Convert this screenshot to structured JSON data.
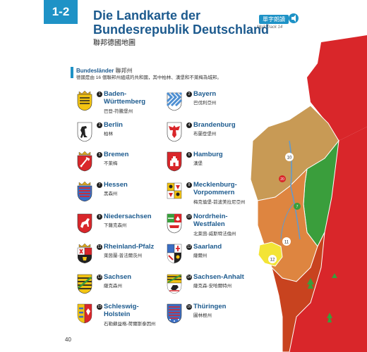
{
  "header": {
    "chapter": "1-2",
    "title_line1": "Die Landkarte der",
    "title_line2": "Bundesrepublik Deutschland",
    "subtitle": "聯邦德國地圖",
    "mp3_label": "單字朗讀",
    "mp3_track": "Mp3 Track 14"
  },
  "section": {
    "title": "Bundesländer",
    "title_zh": "聯邦州",
    "description": "德國是由 16 個聯邦州組成的共和國，其中柏林、漢堡和不萊梅為城邦。"
  },
  "states": [
    {
      "num": "1",
      "name": "Baden-\nWürttemberg",
      "zh": "巴登-符騰堡州"
    },
    {
      "num": "2",
      "name": "Bayern",
      "zh": "巴伐利亞州"
    },
    {
      "num": "3",
      "name": "Berlin",
      "zh": "柏林"
    },
    {
      "num": "4",
      "name": "Brandenburg",
      "zh": "布蘭登堡州"
    },
    {
      "num": "5",
      "name": "Bremen",
      "zh": "不萊梅"
    },
    {
      "num": "6",
      "name": "Hamburg",
      "zh": "漢堡"
    },
    {
      "num": "7",
      "name": "Hessen",
      "zh": "黑森州"
    },
    {
      "num": "8",
      "name": "Mecklenburg-\nVorpommern",
      "zh": "梅克倫堡-前波美拉尼亞州"
    },
    {
      "num": "9",
      "name": "Niedersachsen",
      "zh": "下薩克森州"
    },
    {
      "num": "10",
      "name": "Nordrhein-\nWestfalen",
      "zh": "北萊茵-威斯特法倫州"
    },
    {
      "num": "11",
      "name": "Rheinland-Pfalz",
      "zh": "萊茵蘭-普法爾茨州"
    },
    {
      "num": "12",
      "name": "Saarland",
      "zh": "薩爾州"
    },
    {
      "num": "13",
      "name": "Sachsen",
      "zh": "薩克森州"
    },
    {
      "num": "14",
      "name": "Sachsen-Anhalt",
      "zh": "薩克森-安哈爾特州"
    },
    {
      "num": "15",
      "name": "Schleswig-\nHolstein",
      "zh": "石勒蘇益格-荷爾斯泰因州"
    },
    {
      "num": "16",
      "name": "Thüringen",
      "zh": "圖林根州"
    }
  ],
  "map_labels": [
    "10",
    "20",
    "7",
    "11",
    "12"
  ],
  "page_number": "40",
  "colors": {
    "accent": "#1e92c6",
    "title": "#1c5a8e",
    "map_tan": "#c89a55",
    "map_orange": "#de8540",
    "map_red": "#d9262a",
    "map_green": "#3a9e3c",
    "map_yellow": "#f3e436"
  }
}
